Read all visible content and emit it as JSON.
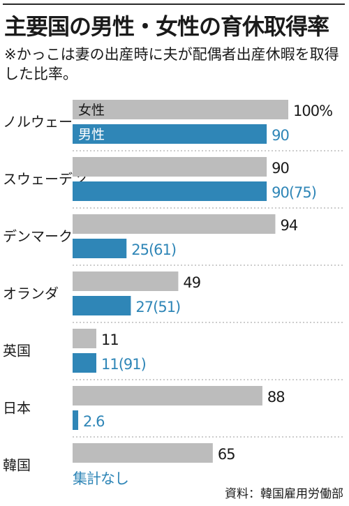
{
  "title": "主要国の男性・女性の育休取得率",
  "note": "※かっこは妻の出産時に夫が配偶者出産休暇を取得した比率。",
  "source": "資料：韓国雇用労働部",
  "colors": {
    "female": "#bcbcbc",
    "male": "#2f86b7",
    "text": "#1a1a1a",
    "divider": "#9a9a9a"
  },
  "chart_data": {
    "type": "bar",
    "orientation": "horizontal",
    "title": "主要国の男性・女性の育休取得率",
    "categories": [
      "ノルウェー",
      "スウェーデン",
      "デンマーク",
      "オランダ",
      "英国",
      "日本",
      "韓国"
    ],
    "xlim": [
      0,
      100
    ],
    "unit_label": "%",
    "series": [
      {
        "name": "女性",
        "values": [
          100,
          90,
          94,
          49,
          11,
          88,
          65
        ],
        "labels": [
          "100%",
          "90",
          "94",
          "49",
          "11",
          "88",
          "65"
        ]
      },
      {
        "name": "男性",
        "values": [
          90,
          90,
          25,
          27,
          11,
          2.6,
          null
        ],
        "labels": [
          "90",
          "90(75)",
          "25(61)",
          "27(51)",
          "11(91)",
          "2.6",
          "集計なし"
        ]
      }
    ],
    "grid": false,
    "legend": "inside first bars"
  }
}
